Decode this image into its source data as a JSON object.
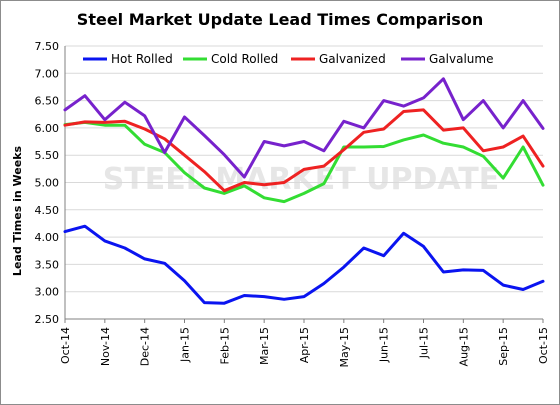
{
  "chart_data": {
    "type": "line",
    "title": "Steel Market Update Lead Times Comparison",
    "ylabel": "Lead Times in Weeks",
    "xlabel": "",
    "watermark": "STEEL MARKET UPDATE",
    "ylim": [
      2.5,
      7.5
    ],
    "yticks": [
      "2.50",
      "3.00",
      "3.50",
      "4.00",
      "4.50",
      "5.00",
      "5.50",
      "6.00",
      "6.50",
      "7.00",
      "7.50"
    ],
    "grid": true,
    "legend_position": "top",
    "x_labels": [
      "Oct-14",
      "Nov-14",
      "Dec-14",
      "Jan-15",
      "Feb-15",
      "Mar-15",
      "Apr-15",
      "May-15",
      "Jun-15",
      "Jul-15",
      "Aug-15",
      "Sep-15",
      "Oct-15"
    ],
    "points_per_label": 2,
    "series": [
      {
        "name": "Hot Rolled",
        "color": "#0a14f0",
        "values": [
          4.1,
          4.2,
          3.93,
          3.8,
          3.6,
          3.52,
          3.2,
          2.8,
          2.79,
          2.93,
          2.91,
          2.86,
          2.91,
          3.15,
          3.45,
          3.8,
          3.66,
          4.07,
          3.83,
          3.36,
          3.4,
          3.39,
          3.12,
          3.04,
          3.19
        ]
      },
      {
        "name": "Cold Rolled",
        "color": "#33dd33",
        "values": [
          6.06,
          6.1,
          6.05,
          6.05,
          5.7,
          5.55,
          5.18,
          4.9,
          4.8,
          4.94,
          4.72,
          4.65,
          4.8,
          4.98,
          5.65,
          5.65,
          5.66,
          5.78,
          5.87,
          5.72,
          5.65,
          5.48,
          5.08,
          5.65,
          4.95
        ]
      },
      {
        "name": "Galvanized",
        "color": "#ee2222",
        "values": [
          6.05,
          6.11,
          6.1,
          6.12,
          5.98,
          5.8,
          5.5,
          5.2,
          4.85,
          5.0,
          4.96,
          5.0,
          5.24,
          5.3,
          5.6,
          5.92,
          5.98,
          6.3,
          6.33,
          5.96,
          6.0,
          5.58,
          5.65,
          5.85,
          5.3
        ]
      },
      {
        "name": "Galvalume",
        "color": "#7722cc",
        "values": [
          6.33,
          6.59,
          6.15,
          6.47,
          6.22,
          5.55,
          6.2,
          5.86,
          5.51,
          5.1,
          5.75,
          5.67,
          5.75,
          5.58,
          6.12,
          6.0,
          6.5,
          6.4,
          6.55,
          6.9,
          6.15,
          6.5,
          6.0,
          6.5,
          5.99
        ]
      }
    ]
  }
}
